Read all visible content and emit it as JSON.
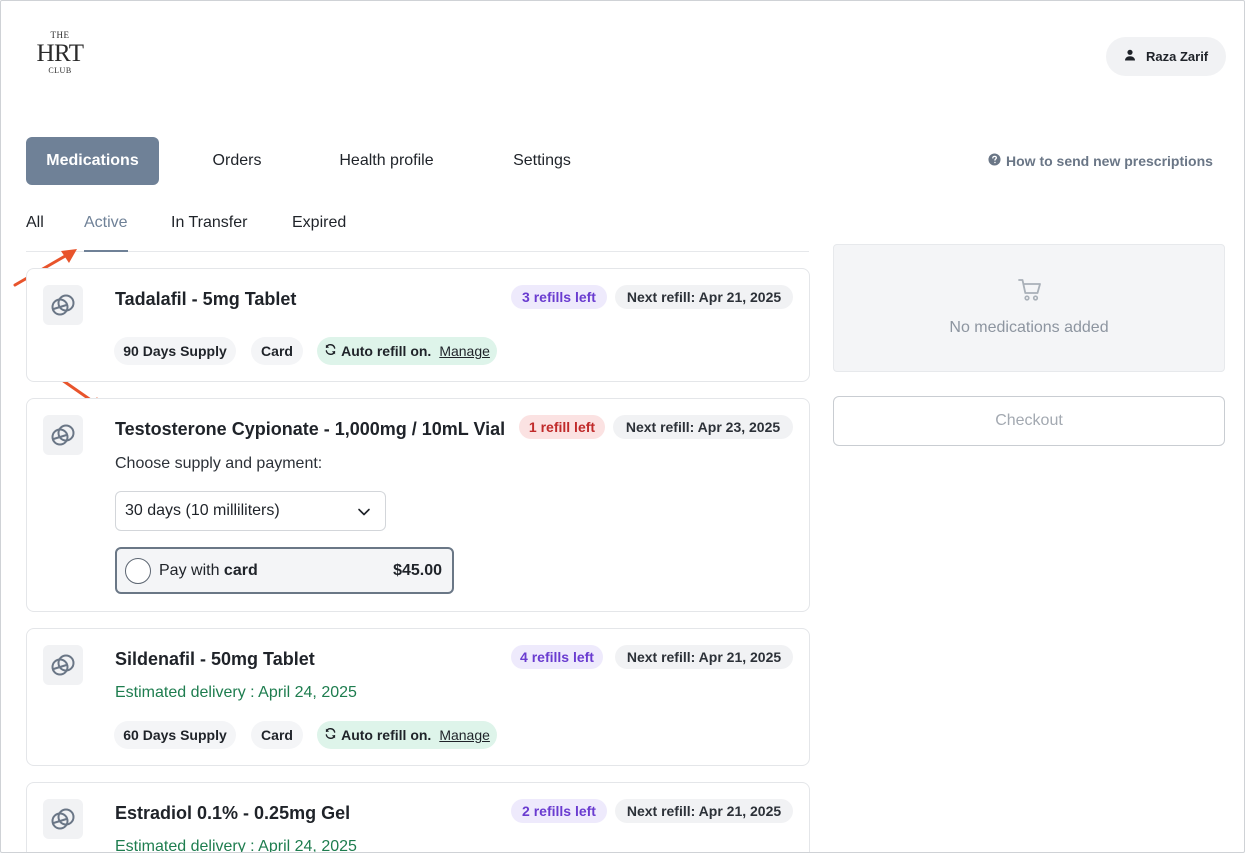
{
  "brand": {
    "line1": "THE",
    "line2": "HRT",
    "line3": "CLUB"
  },
  "user": {
    "name": "Raza Zarif",
    "icon": "user-icon"
  },
  "nav": {
    "items": [
      {
        "label": "Medications",
        "active": true
      },
      {
        "label": "Orders",
        "active": false
      },
      {
        "label": "Health profile",
        "active": false
      },
      {
        "label": "Settings",
        "active": false
      }
    ],
    "help_label": "How to send new prescriptions",
    "help_icon": "question-circle-icon"
  },
  "tabs": [
    {
      "label": "All",
      "active": false
    },
    {
      "label": "Active",
      "active": true
    },
    {
      "label": "In Transfer",
      "active": false
    },
    {
      "label": "Expired",
      "active": false
    }
  ],
  "annotation_color": "#e8542c",
  "medications": [
    {
      "name": "Tadalafil - 5mg Tablet",
      "refills": "3 refills left",
      "next_refill": "Next refill: Apr 21, 2025",
      "supply": "90 Days Supply",
      "payment": "Card",
      "auto_refill": "Auto refill on.",
      "manage": "Manage"
    },
    {
      "name": "Testosterone Cypionate - 1,000mg / 10mL Vial",
      "refills": "1 refill left",
      "next_refill": "Next refill: Apr 23, 2025",
      "choose_label": "Choose supply and payment:",
      "supply_option": "30 days (10 milliliters)",
      "pay_prefix": "Pay with",
      "pay_method": "card",
      "price": "$45.00"
    },
    {
      "name": "Sildenafil - 50mg Tablet",
      "refills": "4 refills left",
      "next_refill": "Next refill: Apr 21, 2025",
      "delivery": "Estimated delivery : April 24, 2025",
      "supply": "60 Days Supply",
      "payment": "Card",
      "auto_refill": "Auto refill on.",
      "manage": "Manage"
    },
    {
      "name": "Estradiol 0.1% - 0.25mg Gel",
      "refills": "2 refills left",
      "next_refill": "Next refill: Apr 21, 2025",
      "delivery": "Estimated delivery : April 24, 2025"
    }
  ],
  "cart": {
    "empty_text": "No medications added",
    "icon": "cart-icon",
    "checkout_label": "Checkout"
  },
  "colors": {
    "accent": "#6f8197",
    "refill_purple": "#6a3cd0",
    "refill_red": "#c02a2a",
    "delivery_green": "#1e7d4f",
    "auto_refill_bg": "#def4ea"
  }
}
